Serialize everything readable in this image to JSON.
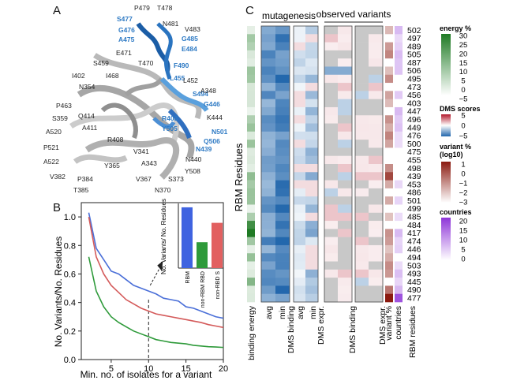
{
  "panels": {
    "a": "A",
    "b": "B",
    "c": "C"
  },
  "panel_a": {
    "residues_blue": [
      "S477",
      "G476",
      "A475",
      "G485",
      "E484",
      "F490",
      "L455",
      "S494",
      "G446",
      "R403",
      "Y505",
      "N501",
      "Q506",
      "N439"
    ],
    "residues_black": [
      "P479",
      "T478",
      "N481",
      "V483",
      "E471",
      "S459",
      "T470",
      "I402",
      "I468",
      "L452",
      "N354",
      "A348",
      "P463",
      "S359",
      "Q414",
      "A411",
      "K444",
      "A520",
      "R408",
      "V341",
      "N440",
      "P521",
      "A522",
      "Y365",
      "A343",
      "Y508",
      "V382",
      "P384",
      "V367",
      "S373",
      "T385",
      "N370"
    ]
  },
  "chart_data": {
    "type": "line",
    "xlabel": "Min. no. of isolates for a variant",
    "ylabel": "No. Variants/No. Residues",
    "xlim": [
      1,
      20
    ],
    "ylim": [
      0,
      1.1
    ],
    "xticks": [
      "5",
      "10",
      "15",
      "20"
    ],
    "yticks": [
      "0.0",
      "0.2",
      "0.4",
      "0.6",
      "0.8",
      "1.0"
    ],
    "annotation_x": 10,
    "x": [
      2,
      3,
      4,
      5,
      6,
      7,
      8,
      9,
      10,
      11,
      12,
      13,
      14,
      15,
      16,
      17,
      18,
      19,
      20
    ],
    "series": [
      {
        "name": "RBM",
        "color": "#4a6fd8",
        "values": [
          1.03,
          0.78,
          0.7,
          0.62,
          0.6,
          0.56,
          0.52,
          0.5,
          0.48,
          0.46,
          0.43,
          0.42,
          0.41,
          0.37,
          0.36,
          0.34,
          0.32,
          0.3,
          0.29
        ]
      },
      {
        "name": "non-RBD S",
        "color": "#d45a5a",
        "values": [
          1.0,
          0.72,
          0.6,
          0.52,
          0.47,
          0.42,
          0.39,
          0.36,
          0.34,
          0.32,
          0.31,
          0.3,
          0.29,
          0.28,
          0.27,
          0.26,
          0.245,
          0.235,
          0.225
        ]
      },
      {
        "name": "non-RBM RBD",
        "color": "#2e9a3a",
        "values": [
          0.72,
          0.48,
          0.37,
          0.3,
          0.26,
          0.23,
          0.2,
          0.18,
          0.16,
          0.14,
          0.13,
          0.12,
          0.115,
          0.11,
          0.1,
          0.095,
          0.09,
          0.088,
          0.085
        ]
      }
    ],
    "inset": {
      "ylabel": "No. Variants/ No. Residues",
      "categories": [
        "RBM",
        "non-RBM RBD",
        "non-RBD S"
      ],
      "values": [
        0.47,
        0.2,
        0.35
      ],
      "colors": [
        "#3f63e0",
        "#2e9a3a",
        "#e26060"
      ],
      "ylim": [
        0,
        0.5
      ]
    }
  },
  "panel_c": {
    "y_title": "RBM Residues",
    "group_mutagenesis": "mutagenesis",
    "group_observed": "observed variants",
    "columns": {
      "binding_energy": "binding energy",
      "dms_binding": "DMS binding",
      "dms_expr": "DMS expr.",
      "obs_dms_binding": "DMS binding",
      "obs_dms_expr": "DMS expr.",
      "variant_pct": "variant %",
      "countries": "countries",
      "rbm_residues": "RBM residues"
    },
    "sub_avg": "avg",
    "sub_min": "min",
    "residues": [
      "502",
      "497",
      "489",
      "505",
      "487",
      "506",
      "495",
      "473",
      "456",
      "403",
      "447",
      "496",
      "449",
      "476",
      "500",
      "475",
      "455",
      "498",
      "439",
      "453",
      "486",
      "501",
      "499",
      "485",
      "484",
      "417",
      "474",
      "446",
      "494",
      "503",
      "493",
      "445",
      "490",
      "477"
    ],
    "legends": {
      "energy": {
        "title": "energy %",
        "ticks": [
          "30",
          "25",
          "20",
          "15",
          "10",
          "5",
          "0",
          "−5"
        ]
      },
      "dms": {
        "title": "DMS scores",
        "ticks": [
          "5",
          "0",
          "−5"
        ]
      },
      "variant": {
        "title": "variant % (log10)",
        "title1": "variant %",
        "title2": "(log10)",
        "ticks": [
          "1",
          "0",
          "−1",
          "−2",
          "−3"
        ]
      },
      "countries": {
        "title": "countries",
        "ticks": [
          "20",
          "15",
          "10",
          "5",
          "0"
        ]
      }
    },
    "colors": {
      "energy": "#1f7a24",
      "dms_pos": "#b2182b",
      "dms_neg": "#2166ac",
      "variant": "#8b1a10",
      "countries": "#8e35d8"
    }
  }
}
